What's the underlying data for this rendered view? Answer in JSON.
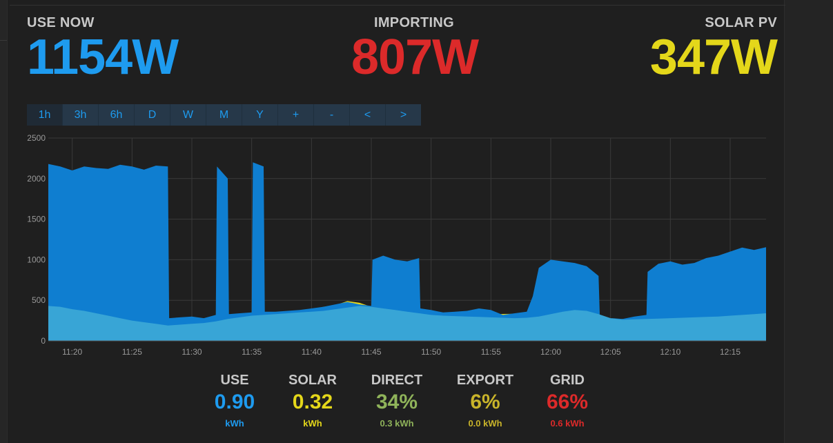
{
  "header": {
    "use": {
      "label": "USE NOW",
      "value": "1154W",
      "color": "#1e9bef"
    },
    "importing": {
      "label": "IMPORTING",
      "value": "807W",
      "color": "#dc2a2a"
    },
    "solar": {
      "label": "SOLAR PV",
      "value": "347W",
      "color": "#e4d71a"
    }
  },
  "timeframe_tabs": [
    {
      "label": "1h",
      "active": true
    },
    {
      "label": "3h"
    },
    {
      "label": "6h"
    },
    {
      "label": "D"
    },
    {
      "label": "W"
    },
    {
      "label": "M"
    },
    {
      "label": "Y"
    },
    {
      "label": "+"
    },
    {
      "label": "-"
    },
    {
      "label": "<"
    },
    {
      "label": ">"
    }
  ],
  "chart_data": {
    "type": "area",
    "x_tick_labels": [
      "11:20",
      "11:25",
      "11:30",
      "11:35",
      "11:40",
      "11:45",
      "11:50",
      "11:55",
      "12:00",
      "12:05",
      "12:10",
      "12:15"
    ],
    "y_tick_labels": [
      "2500",
      "2000",
      "1500",
      "1000",
      "500",
      "0"
    ],
    "ylim": [
      0,
      2500
    ],
    "grid": true,
    "colors": {
      "use": "#0f7ed0",
      "solar": "#e8d81a",
      "direct": "#38a5d6"
    },
    "series": [
      {
        "key": "use",
        "x": [
          "11:18",
          "11:19",
          "11:20",
          "11:21",
          "11:22",
          "11:23",
          "11:24",
          "11:25",
          "11:26",
          "11:27",
          "11:28",
          "11:28.1",
          "11:29",
          "11:30",
          "11:31",
          "11:32",
          "11:32.1",
          "11:33",
          "11:33.1",
          "11:34",
          "11:35",
          "11:35.1",
          "11:36",
          "11:36.1",
          "11:37",
          "11:38",
          "11:39",
          "11:40",
          "11:41",
          "11:42",
          "11:43",
          "11:44",
          "11:45",
          "11:45.1",
          "11:46",
          "11:47",
          "11:48",
          "11:49",
          "11:49.1",
          "11:50",
          "11:51",
          "11:52",
          "11:53",
          "11:54",
          "11:55",
          "11:56",
          "11:57",
          "11:58",
          "11:58.5",
          "11:59",
          "12:00",
          "12:01",
          "12:02",
          "12:03",
          "12:04",
          "12:04.1",
          "12:05",
          "12:05.1",
          "12:06",
          "12:07",
          "12:08",
          "12:08.1",
          "12:09",
          "12:10",
          "12:11",
          "12:12",
          "12:13",
          "12:14",
          "12:15",
          "12:16",
          "12:17",
          "12:18"
        ],
        "values": [
          2180,
          2150,
          2100,
          2150,
          2130,
          2120,
          2170,
          2150,
          2110,
          2160,
          2150,
          280,
          290,
          300,
          280,
          320,
          2150,
          2000,
          330,
          340,
          350,
          2200,
          2150,
          360,
          360,
          370,
          380,
          400,
          420,
          450,
          480,
          450,
          430,
          1000,
          1050,
          1000,
          980,
          1020,
          400,
          380,
          350,
          360,
          370,
          400,
          380,
          320,
          340,
          360,
          550,
          900,
          1000,
          980,
          960,
          920,
          800,
          300,
          250,
          280,
          270,
          300,
          320,
          850,
          950,
          980,
          940,
          960,
          1020,
          1050,
          1100,
          1150,
          1120,
          1154
        ]
      },
      {
        "key": "solar",
        "x": [
          "11:18",
          "11:20",
          "11:25",
          "11:28",
          "11:30",
          "11:35",
          "11:38",
          "11:40",
          "11:41",
          "11:42",
          "11:43",
          "11:44",
          "11:45",
          "11:48",
          "11:50",
          "11:55",
          "12:00",
          "12:03",
          "12:04",
          "12:05",
          "12:06",
          "12:10",
          "12:15",
          "12:18"
        ],
        "values": [
          300,
          290,
          270,
          240,
          250,
          300,
          330,
          380,
          420,
          440,
          490,
          470,
          420,
          330,
          320,
          330,
          340,
          320,
          280,
          260,
          270,
          280,
          320,
          347
        ]
      },
      {
        "key": "direct",
        "x": [
          "11:18",
          "11:19",
          "11:20",
          "11:21",
          "11:22",
          "11:23",
          "11:24",
          "11:25",
          "11:26",
          "11:27",
          "11:28",
          "11:29",
          "11:30",
          "11:31",
          "11:32",
          "11:33",
          "11:34",
          "11:35",
          "11:36",
          "11:37",
          "11:38",
          "11:39",
          "11:40",
          "11:41",
          "11:42",
          "11:43",
          "11:44",
          "11:45",
          "11:46",
          "11:47",
          "11:48",
          "11:49",
          "11:50",
          "11:51",
          "11:52",
          "11:53",
          "11:54",
          "11:55",
          "11:56",
          "11:57",
          "11:58",
          "11:59",
          "12:00",
          "12:01",
          "12:02",
          "12:03",
          "12:04",
          "12:05",
          "12:06",
          "12:07",
          "12:08",
          "12:09",
          "12:10",
          "12:11",
          "12:12",
          "12:13",
          "12:14",
          "12:15",
          "12:16",
          "12:17",
          "12:18"
        ],
        "values": [
          430,
          420,
          390,
          370,
          340,
          310,
          280,
          250,
          230,
          210,
          190,
          200,
          210,
          220,
          240,
          270,
          290,
          310,
          320,
          330,
          340,
          350,
          360,
          370,
          390,
          410,
          430,
          420,
          400,
          380,
          360,
          340,
          320,
          310,
          305,
          300,
          295,
          290,
          285,
          280,
          285,
          300,
          330,
          360,
          380,
          370,
          330,
          280,
          260,
          265,
          270,
          275,
          280,
          285,
          290,
          295,
          300,
          310,
          320,
          330,
          340
        ]
      }
    ]
  },
  "totals": [
    {
      "key": "use",
      "label": "USE",
      "value": "0.90",
      "unit": "kWh",
      "color": "#1e9bef",
      "unit_color": "#1e9bef"
    },
    {
      "key": "solar",
      "label": "SOLAR",
      "value": "0.32",
      "unit": "kWh",
      "color": "#e4d71a",
      "unit_color": "#e4d71a"
    },
    {
      "key": "direct",
      "label": "DIRECT",
      "value": "34%",
      "unit": "0.3 kWh",
      "color": "#8fb35a",
      "unit_color": "#8fb35a"
    },
    {
      "key": "export",
      "label": "EXPORT",
      "value": "6%",
      "unit": "0.0 kWh",
      "color": "#c9b42a",
      "unit_color": "#c9b42a"
    },
    {
      "key": "grid",
      "label": "GRID",
      "value": "66%",
      "unit": "0.6 kWh",
      "color": "#dc2a2a",
      "unit_color": "#dc2a2a"
    }
  ]
}
